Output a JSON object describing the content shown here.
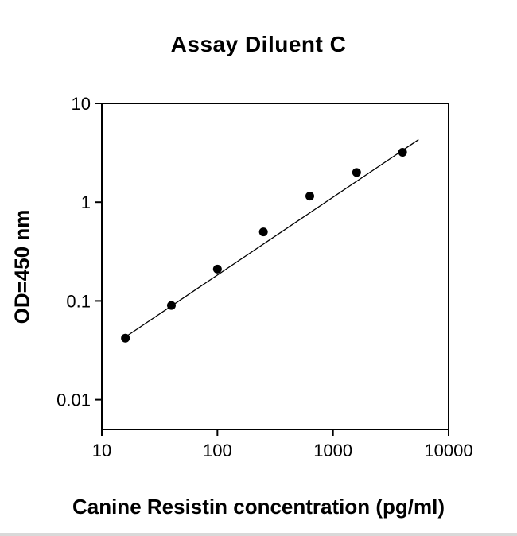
{
  "page": {
    "title": "Assay Diluent C",
    "x_axis_label": "Canine Resistin concentration (pg/ml)",
    "y_axis_label": "OD=450 nm"
  },
  "chart_data": {
    "type": "scatter",
    "title": "Assay Diluent C",
    "xlabel": "Canine Resistin concentration (pg/ml)",
    "ylabel": "OD=450 nm",
    "x_scale": "log",
    "y_scale": "log",
    "x_range": [
      10,
      10000
    ],
    "y_range": [
      0.005,
      10
    ],
    "x_ticks": [
      10,
      100,
      1000,
      10000
    ],
    "y_ticks": [
      10,
      1,
      0.1,
      0.01
    ],
    "grid": false,
    "legend": false,
    "point_color": "#000000",
    "line_color": "#000000",
    "points": [
      {
        "x": 16,
        "y": 0.042
      },
      {
        "x": 40,
        "y": 0.09
      },
      {
        "x": 100,
        "y": 0.21
      },
      {
        "x": 250,
        "y": 0.5
      },
      {
        "x": 630,
        "y": 1.15
      },
      {
        "x": 1600,
        "y": 2.0
      },
      {
        "x": 4000,
        "y": 3.2
      }
    ],
    "fit_line": {
      "x1": 15,
      "y1": 0.041,
      "x2": 5500,
      "y2": 4.3
    }
  }
}
